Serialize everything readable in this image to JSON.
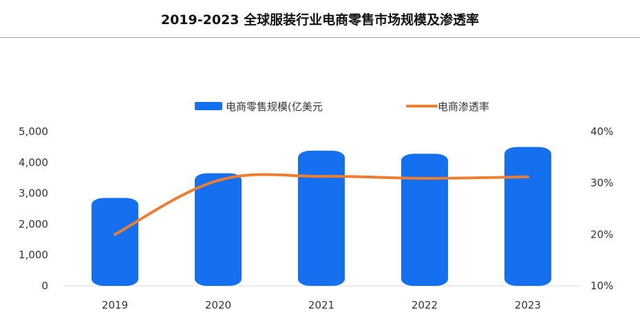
{
  "chart_data": {
    "type": "bar+line",
    "title": "2019-2023 全球服装行业电商零售市场规模及渗透率",
    "categories": [
      "2019",
      "2020",
      "2021",
      "2022",
      "2023"
    ],
    "series": [
      {
        "name": "电商零售规模(亿美元",
        "type": "bar",
        "axis": "left",
        "color": "#1570EF",
        "values": [
          2850,
          3650,
          4380,
          4280,
          4500
        ]
      },
      {
        "name": "电商渗透率",
        "type": "line",
        "axis": "right",
        "color": "#ED7D31",
        "values": [
          20,
          30.5,
          31.3,
          30.9,
          31.2
        ]
      }
    ],
    "y_left": {
      "ticks": [
        "5,000",
        "4,000",
        "3,000",
        "2,000",
        "1,000",
        "0"
      ],
      "ylim": [
        0,
        5000
      ]
    },
    "y_right": {
      "ticks": [
        "40%",
        "30%",
        "20%",
        "10%"
      ],
      "ylim": [
        10,
        40
      ]
    },
    "legend_position": "top"
  }
}
